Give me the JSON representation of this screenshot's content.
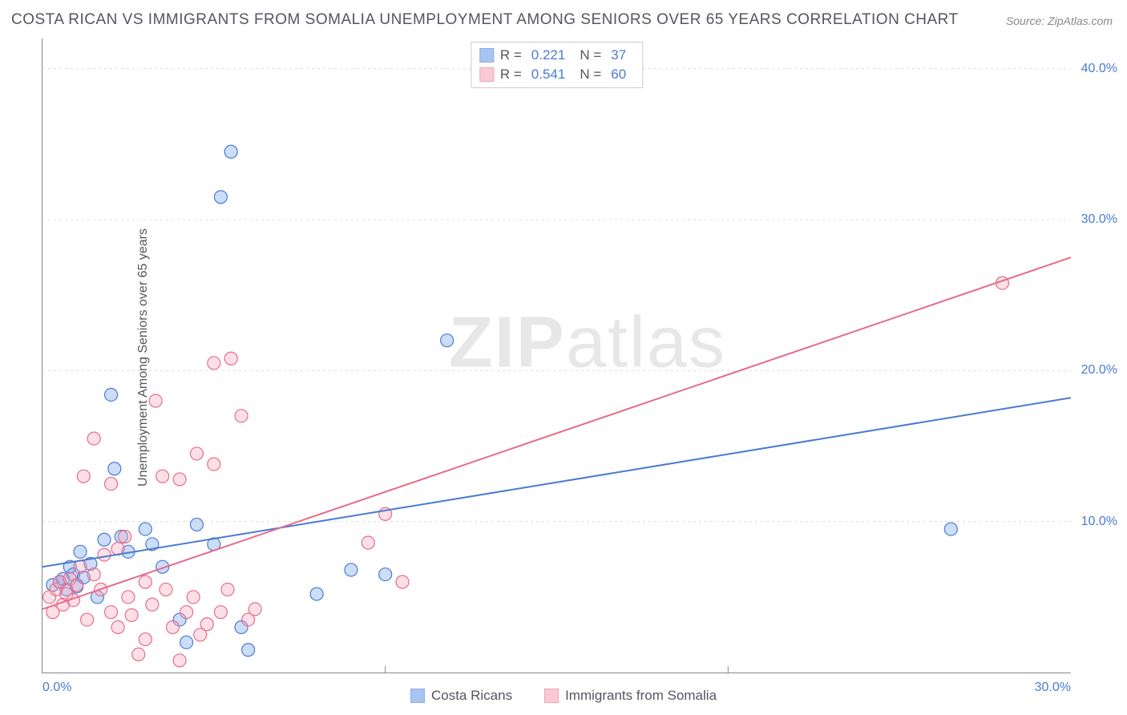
{
  "title": "COSTA RICAN VS IMMIGRANTS FROM SOMALIA UNEMPLOYMENT AMONG SENIORS OVER 65 YEARS CORRELATION CHART",
  "source": "Source: ZipAtlas.com",
  "y_axis_label": "Unemployment Among Seniors over 65 years",
  "watermark_bold": "ZIP",
  "watermark_light": "atlas",
  "chart": {
    "type": "scatter",
    "xlim": [
      0,
      30
    ],
    "ylim": [
      0,
      42
    ],
    "x_ticks": [
      0,
      30
    ],
    "x_tick_labels": [
      "0.0%",
      "30.0%"
    ],
    "y_ticks": [
      10,
      20,
      30,
      40
    ],
    "y_tick_labels": [
      "10.0%",
      "20.0%",
      "30.0%",
      "40.0%"
    ],
    "y_tick_right": true,
    "x_minor_ticks": [
      10,
      20
    ],
    "x_minor_grid": true,
    "y_grid_dashed": true,
    "background_color": "#ffffff",
    "grid_color": "#dddddd",
    "axis_color": "#888888",
    "marker_radius": 8,
    "marker_fill_opacity": 0.35,
    "marker_stroke_width": 1.2,
    "line_width": 2,
    "series": [
      {
        "name": "Costa Ricans",
        "color": "#6d9eeb",
        "stroke": "#4a7bd0",
        "R": "0.221",
        "N": "37",
        "trend_line": {
          "x1": 0,
          "y1": 7.0,
          "x2": 30,
          "y2": 18.2
        },
        "points": [
          [
            0.3,
            5.8
          ],
          [
            0.5,
            6.0
          ],
          [
            0.6,
            6.2
          ],
          [
            0.7,
            5.5
          ],
          [
            0.8,
            7.0
          ],
          [
            0.9,
            6.5
          ],
          [
            1.0,
            5.7
          ],
          [
            1.1,
            8.0
          ],
          [
            1.2,
            6.3
          ],
          [
            1.4,
            7.2
          ],
          [
            1.6,
            5.0
          ],
          [
            1.8,
            8.8
          ],
          [
            2.0,
            18.4
          ],
          [
            2.1,
            13.5
          ],
          [
            2.3,
            9.0
          ],
          [
            2.5,
            8.0
          ],
          [
            3.0,
            9.5
          ],
          [
            3.2,
            8.5
          ],
          [
            3.5,
            7.0
          ],
          [
            4.0,
            3.5
          ],
          [
            4.2,
            2.0
          ],
          [
            4.5,
            9.8
          ],
          [
            5.0,
            8.5
          ],
          [
            5.2,
            31.5
          ],
          [
            5.5,
            34.5
          ],
          [
            5.8,
            3.0
          ],
          [
            6.0,
            1.5
          ],
          [
            8.0,
            5.2
          ],
          [
            9.0,
            6.8
          ],
          [
            10.0,
            6.5
          ],
          [
            11.8,
            22.0
          ],
          [
            26.5,
            9.5
          ]
        ]
      },
      {
        "name": "Immigrants from Somalia",
        "color": "#f8a6ba",
        "stroke": "#e56b8a",
        "R": "0.541",
        "N": "60",
        "trend_line": {
          "x1": 0,
          "y1": 4.2,
          "x2": 30,
          "y2": 27.5
        },
        "points": [
          [
            0.2,
            5.0
          ],
          [
            0.3,
            4.0
          ],
          [
            0.4,
            5.5
          ],
          [
            0.5,
            6.0
          ],
          [
            0.6,
            4.5
          ],
          [
            0.7,
            5.2
          ],
          [
            0.8,
            6.2
          ],
          [
            0.9,
            4.8
          ],
          [
            1.0,
            5.8
          ],
          [
            1.1,
            7.0
          ],
          [
            1.2,
            13.0
          ],
          [
            1.3,
            3.5
          ],
          [
            1.5,
            15.5
          ],
          [
            1.5,
            6.5
          ],
          [
            1.7,
            5.5
          ],
          [
            1.8,
            7.8
          ],
          [
            2.0,
            12.5
          ],
          [
            2.0,
            4.0
          ],
          [
            2.2,
            8.2
          ],
          [
            2.2,
            3.0
          ],
          [
            2.4,
            9.0
          ],
          [
            2.5,
            5.0
          ],
          [
            2.6,
            3.8
          ],
          [
            2.8,
            1.2
          ],
          [
            3.0,
            6.0
          ],
          [
            3.0,
            2.2
          ],
          [
            3.2,
            4.5
          ],
          [
            3.3,
            18.0
          ],
          [
            3.5,
            13.0
          ],
          [
            3.6,
            5.5
          ],
          [
            3.8,
            3.0
          ],
          [
            4.0,
            12.8
          ],
          [
            4.0,
            0.8
          ],
          [
            4.2,
            4.0
          ],
          [
            4.4,
            5.0
          ],
          [
            4.5,
            14.5
          ],
          [
            4.6,
            2.5
          ],
          [
            4.8,
            3.2
          ],
          [
            5.0,
            20.5
          ],
          [
            5.0,
            13.8
          ],
          [
            5.2,
            4.0
          ],
          [
            5.4,
            5.5
          ],
          [
            5.5,
            20.8
          ],
          [
            5.8,
            17.0
          ],
          [
            6.0,
            3.5
          ],
          [
            6.2,
            4.2
          ],
          [
            9.5,
            8.6
          ],
          [
            10.0,
            10.5
          ],
          [
            10.5,
            6.0
          ],
          [
            28.0,
            25.8
          ]
        ]
      }
    ]
  },
  "legend_top": [
    {
      "series_idx": 0,
      "r_label": "R =",
      "n_label": "N ="
    },
    {
      "series_idx": 1,
      "r_label": "R =",
      "n_label": "N ="
    }
  ],
  "legend_bottom": [
    {
      "series_idx": 0
    },
    {
      "series_idx": 1
    }
  ]
}
